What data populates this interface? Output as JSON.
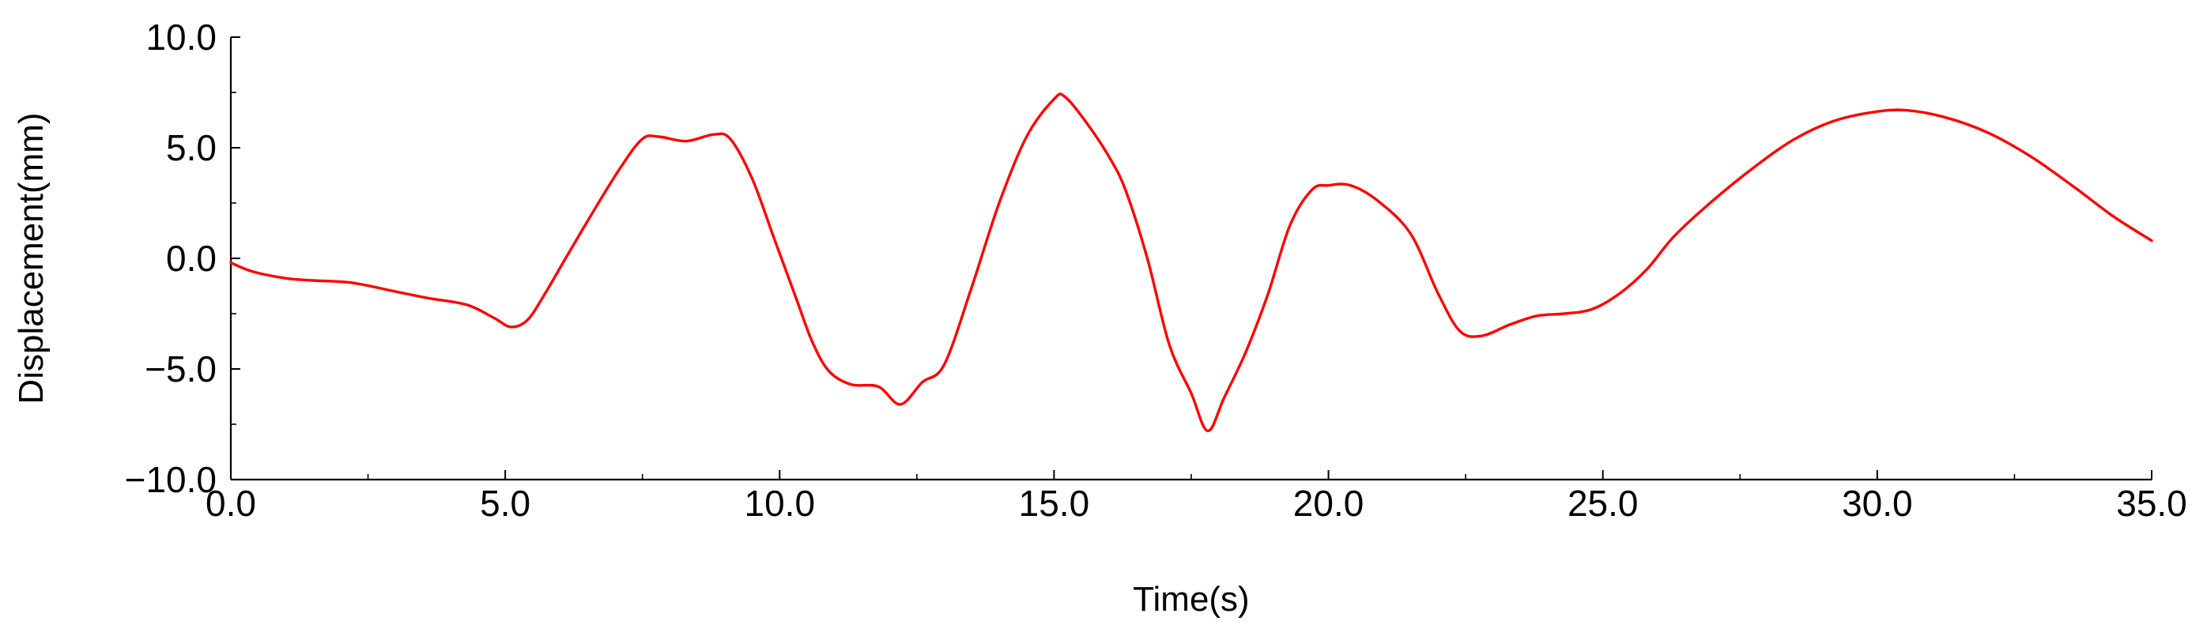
{
  "chart_data": {
    "type": "line",
    "title": "",
    "xlabel": "Time(s)",
    "ylabel": "Displacement(mm)",
    "xlim": [
      0,
      35
    ],
    "ylim": [
      -10,
      10
    ],
    "x_ticks": [
      0,
      5,
      10,
      15,
      20,
      25,
      30,
      35
    ],
    "x_tick_labels": [
      "0.0",
      "5.0",
      "10.0",
      "15.0",
      "20.0",
      "25.0",
      "30.0",
      "35.0"
    ],
    "y_ticks": [
      -10,
      -5,
      0,
      5,
      10
    ],
    "y_tick_labels": [
      "−10.0",
      "−5.0",
      "0.0",
      "5.0",
      "10.0"
    ],
    "grid": false,
    "legend": "none",
    "series": [
      {
        "color": "#ff0000",
        "points": [
          [
            0.0,
            -0.2
          ],
          [
            0.4,
            -0.6
          ],
          [
            1.0,
            -0.9
          ],
          [
            1.5,
            -1.0
          ],
          [
            2.2,
            -1.1
          ],
          [
            3.0,
            -1.5
          ],
          [
            3.6,
            -1.8
          ],
          [
            4.3,
            -2.1
          ],
          [
            4.8,
            -2.7
          ],
          [
            5.1,
            -3.1
          ],
          [
            5.4,
            -2.8
          ],
          [
            5.7,
            -1.7
          ],
          [
            6.1,
            0.0
          ],
          [
            6.6,
            2.1
          ],
          [
            7.1,
            4.1
          ],
          [
            7.5,
            5.4
          ],
          [
            7.8,
            5.5
          ],
          [
            8.3,
            5.3
          ],
          [
            8.8,
            5.6
          ],
          [
            9.1,
            5.4
          ],
          [
            9.5,
            3.6
          ],
          [
            9.9,
            0.9
          ],
          [
            10.3,
            -1.8
          ],
          [
            10.6,
            -3.8
          ],
          [
            10.9,
            -5.1
          ],
          [
            11.3,
            -5.7
          ],
          [
            11.8,
            -5.8
          ],
          [
            12.2,
            -6.6
          ],
          [
            12.6,
            -5.6
          ],
          [
            13.0,
            -4.8
          ],
          [
            13.5,
            -1.3
          ],
          [
            14.0,
            2.5
          ],
          [
            14.5,
            5.5
          ],
          [
            15.0,
            7.2
          ],
          [
            15.2,
            7.3
          ],
          [
            15.6,
            6.1
          ],
          [
            16.0,
            4.6
          ],
          [
            16.3,
            3.1
          ],
          [
            16.7,
            0.0
          ],
          [
            17.1,
            -3.9
          ],
          [
            17.5,
            -6.1
          ],
          [
            17.8,
            -7.8
          ],
          [
            18.1,
            -6.3
          ],
          [
            18.5,
            -4.2
          ],
          [
            18.9,
            -1.6
          ],
          [
            19.3,
            1.5
          ],
          [
            19.7,
            3.1
          ],
          [
            20.0,
            3.3
          ],
          [
            20.4,
            3.3
          ],
          [
            20.9,
            2.6
          ],
          [
            21.5,
            1.1
          ],
          [
            22.0,
            -1.6
          ],
          [
            22.4,
            -3.3
          ],
          [
            22.8,
            -3.5
          ],
          [
            23.3,
            -3.0
          ],
          [
            23.8,
            -2.6
          ],
          [
            24.3,
            -2.5
          ],
          [
            24.8,
            -2.3
          ],
          [
            25.3,
            -1.6
          ],
          [
            25.8,
            -0.5
          ],
          [
            26.3,
            1.0
          ],
          [
            27.0,
            2.6
          ],
          [
            27.8,
            4.2
          ],
          [
            28.5,
            5.4
          ],
          [
            29.2,
            6.2
          ],
          [
            29.9,
            6.6
          ],
          [
            30.5,
            6.7
          ],
          [
            31.2,
            6.4
          ],
          [
            32.0,
            5.7
          ],
          [
            32.8,
            4.6
          ],
          [
            33.6,
            3.2
          ],
          [
            34.3,
            1.9
          ],
          [
            35.0,
            0.8
          ]
        ]
      }
    ]
  }
}
